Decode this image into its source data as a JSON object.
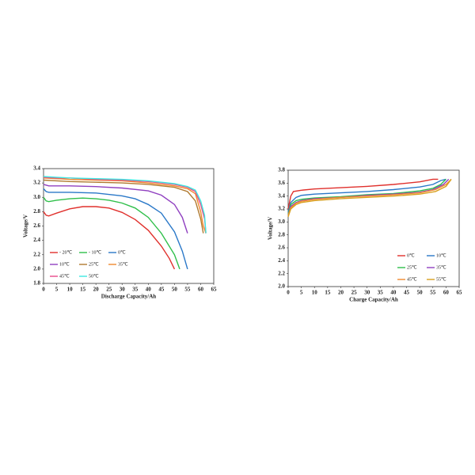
{
  "chart_data": [
    {
      "type": "line",
      "xlabel": "Discharge Capacity/Ah",
      "ylabel": "Voltage/V",
      "xlim": [
        0,
        65
      ],
      "xticks": [
        0,
        5,
        10,
        15,
        20,
        25,
        30,
        35,
        40,
        45,
        50,
        55,
        60,
        65
      ],
      "ylim": [
        1.8,
        3.4
      ],
      "yticks": [
        1.8,
        {
          "value": 2,
          "label": "2.0"
        },
        2.2,
        2.4,
        2.6,
        2.8,
        {
          "value": 3,
          "label": "3.0"
        },
        3.2,
        3.4
      ],
      "grid": false,
      "legend": "lower left",
      "series": [
        {
          "name": "- 20℃",
          "color": "#e0302c",
          "x": [
            0,
            1,
            2,
            5,
            10,
            15,
            20,
            25,
            30,
            35,
            40,
            45,
            48,
            50
          ],
          "values": [
            2.8,
            2.75,
            2.74,
            2.78,
            2.84,
            2.87,
            2.87,
            2.85,
            2.79,
            2.69,
            2.54,
            2.32,
            2.15,
            2.0
          ]
        },
        {
          "name": "- 10℃",
          "color": "#2fbf4a",
          "x": [
            0,
            1,
            2,
            5,
            10,
            15,
            20,
            25,
            30,
            35,
            40,
            45,
            50,
            52
          ],
          "values": [
            3.0,
            2.95,
            2.94,
            2.96,
            2.98,
            2.99,
            2.98,
            2.96,
            2.92,
            2.85,
            2.72,
            2.5,
            2.2,
            2.0
          ]
        },
        {
          "name": "0℃",
          "color": "#2a78c8",
          "x": [
            0,
            1,
            2,
            5,
            10,
            20,
            30,
            35,
            40,
            45,
            50,
            53,
            55
          ],
          "values": [
            3.12,
            3.08,
            3.07,
            3.07,
            3.07,
            3.06,
            3.02,
            2.98,
            2.9,
            2.78,
            2.52,
            2.25,
            2.0
          ]
        },
        {
          "name": "10℃",
          "color": "#9040c0",
          "x": [
            0,
            2,
            5,
            10,
            20,
            30,
            40,
            45,
            50,
            53,
            55
          ],
          "values": [
            3.18,
            3.16,
            3.16,
            3.16,
            3.15,
            3.13,
            3.09,
            3.03,
            2.9,
            2.72,
            2.5
          ]
        },
        {
          "name": "25℃",
          "color": "#b07a30",
          "x": [
            0,
            5,
            10,
            20,
            30,
            40,
            50,
            55,
            58,
            60,
            61
          ],
          "values": [
            3.24,
            3.23,
            3.22,
            3.21,
            3.2,
            3.18,
            3.14,
            3.08,
            2.95,
            2.7,
            2.5
          ]
        },
        {
          "name": "35℃",
          "color": "#f08a30",
          "x": [
            0,
            5,
            10,
            20,
            30,
            40,
            50,
            55,
            58,
            60,
            61,
            62
          ],
          "values": [
            3.27,
            3.26,
            3.25,
            3.24,
            3.23,
            3.2,
            3.16,
            3.12,
            3.05,
            2.8,
            2.6,
            2.5
          ]
        },
        {
          "name": "45℃",
          "color": "#e84a8a",
          "x": [
            0,
            5,
            10,
            20,
            30,
            40,
            50,
            55,
            58,
            60,
            61.5,
            62
          ],
          "values": [
            3.28,
            3.27,
            3.27,
            3.25,
            3.24,
            3.22,
            3.18,
            3.14,
            3.08,
            2.9,
            2.7,
            2.5
          ]
        },
        {
          "name": "50℃",
          "color": "#3ee8e0",
          "x": [
            0,
            5,
            10,
            20,
            30,
            40,
            50,
            55,
            58,
            60,
            61.5,
            62
          ],
          "values": [
            3.29,
            3.28,
            3.27,
            3.26,
            3.25,
            3.23,
            3.19,
            3.15,
            3.1,
            2.95,
            2.75,
            2.5
          ]
        }
      ]
    },
    {
      "type": "line",
      "xlabel": "Charge Capacity/Ah",
      "ylabel": "Voltage/V",
      "xlim": [
        0,
        65
      ],
      "xticks": [
        0,
        5,
        10,
        15,
        20,
        25,
        30,
        35,
        40,
        45,
        50,
        55,
        60,
        65
      ],
      "ylim": [
        2.0,
        3.8
      ],
      "yticks": [
        {
          "value": 2,
          "label": "2.0"
        },
        2.2,
        2.4,
        2.6,
        2.8,
        {
          "value": 3,
          "label": "3.0"
        },
        3.2,
        3.4,
        3.6,
        3.8
      ],
      "grid": false,
      "legend": "lower right",
      "series": [
        {
          "name": "0℃",
          "color": "#e0302c",
          "x": [
            0,
            1,
            2,
            5,
            10,
            20,
            30,
            40,
            50,
            55,
            57
          ],
          "values": [
            3.2,
            3.4,
            3.47,
            3.49,
            3.51,
            3.53,
            3.55,
            3.58,
            3.62,
            3.66,
            3.66
          ]
        },
        {
          "name": "10℃",
          "color": "#2a78c8",
          "x": [
            0,
            1,
            3,
            5,
            10,
            20,
            30,
            40,
            50,
            55,
            58,
            60
          ],
          "values": [
            3.15,
            3.3,
            3.38,
            3.41,
            3.43,
            3.45,
            3.47,
            3.5,
            3.54,
            3.58,
            3.64,
            3.66
          ]
        },
        {
          "name": "25℃",
          "color": "#2fbf4a",
          "x": [
            0,
            1,
            3,
            5,
            10,
            20,
            30,
            40,
            50,
            55,
            58,
            60
          ],
          "values": [
            3.12,
            3.27,
            3.33,
            3.35,
            3.37,
            3.39,
            3.42,
            3.44,
            3.48,
            3.52,
            3.58,
            3.66
          ]
        },
        {
          "name": "35℃",
          "color": "#9040c0",
          "x": [
            0,
            1,
            3,
            5,
            10,
            20,
            30,
            40,
            50,
            55,
            59,
            61
          ],
          "values": [
            3.1,
            3.24,
            3.3,
            3.33,
            3.36,
            3.38,
            3.41,
            3.43,
            3.46,
            3.5,
            3.58,
            3.66
          ]
        },
        {
          "name": "45℃",
          "color": "#f08a30",
          "x": [
            0,
            1,
            3,
            5,
            10,
            20,
            30,
            40,
            50,
            56,
            60,
            62
          ],
          "values": [
            3.1,
            3.22,
            3.29,
            3.32,
            3.35,
            3.38,
            3.4,
            3.42,
            3.45,
            3.5,
            3.58,
            3.66
          ]
        },
        {
          "name": "55℃",
          "color": "#d8a020",
          "x": [
            0,
            1,
            3,
            5,
            10,
            20,
            30,
            40,
            50,
            56,
            60,
            62
          ],
          "values": [
            3.08,
            3.2,
            3.27,
            3.3,
            3.33,
            3.36,
            3.38,
            3.4,
            3.43,
            3.47,
            3.55,
            3.66
          ]
        }
      ]
    }
  ]
}
